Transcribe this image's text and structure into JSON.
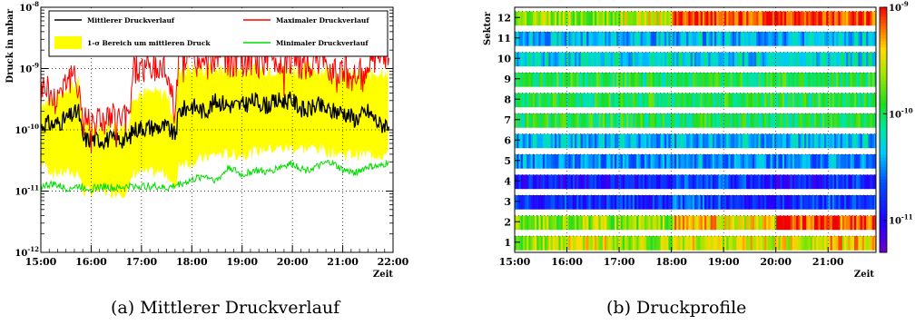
{
  "captions": {
    "a": "(a) Mittlerer Druckverlauf",
    "b": "(b) Druckprofile"
  },
  "chart_data": [
    {
      "type": "line",
      "ylabel": "Druck in mbar",
      "xlabel": "Zeit",
      "yscale": "log",
      "ylim": [
        1e-12,
        1e-08
      ],
      "xlim": [
        "15:00",
        "22:00"
      ],
      "x_ticks": [
        "15:00",
        "16:00",
        "17:00",
        "18:00",
        "19:00",
        "20:00",
        "21:00",
        "22:00"
      ],
      "y_ticks": [
        "10^-12",
        "10^-11",
        "10^-10",
        "10^-9",
        "10^-8"
      ],
      "grid": true,
      "legend": [
        {
          "label": "Mittlerer Druckverlauf",
          "color": "#000000"
        },
        {
          "label": "Maximaler Druckverlauf",
          "color": "#ff0000"
        },
        {
          "label": "1-σ Bereich um mittleren Druck",
          "color": "#ffff00"
        },
        {
          "label": "Minimaler Druckverlauf",
          "color": "#00dd00"
        }
      ],
      "series": [
        {
          "name": "Mittlerer Druckverlauf",
          "color": "#000000",
          "x": [
            "15:00",
            "15:05",
            "15:15",
            "15:30",
            "15:45",
            "15:50",
            "16:00",
            "16:30",
            "16:45",
            "16:50",
            "17:00",
            "17:30",
            "17:40",
            "17:45",
            "18:00",
            "18:15",
            "18:30",
            "18:45",
            "19:00",
            "19:15",
            "19:30",
            "19:45",
            "20:00",
            "20:15",
            "20:30",
            "20:45",
            "21:00",
            "21:15",
            "21:30",
            "21:45",
            "21:55"
          ],
          "y": [
            1.1e-10,
            1.3e-10,
            1.2e-10,
            1.5e-10,
            2e-10,
            7e-11,
            7e-11,
            7e-11,
            7e-11,
            1e-10,
            1.1e-10,
            1.1e-10,
            8e-11,
            2e-10,
            2.5e-10,
            2e-10,
            3e-10,
            2.5e-10,
            2.5e-10,
            3e-10,
            2.5e-10,
            3e-10,
            3e-10,
            2e-10,
            2.5e-10,
            2e-10,
            2e-10,
            1.5e-10,
            2e-10,
            1.2e-10,
            1.3e-10
          ]
        },
        {
          "name": "Maximaler Druckverlauf",
          "color": "#ff0000",
          "x": [
            "15:00",
            "15:05",
            "15:15",
            "15:30",
            "15:45",
            "15:50",
            "16:00",
            "16:30",
            "16:45",
            "16:50",
            "17:00",
            "17:30",
            "17:40",
            "17:45",
            "18:00",
            "18:15",
            "18:30",
            "18:45",
            "19:00",
            "19:15",
            "19:30",
            "19:45",
            "20:00",
            "20:15",
            "20:30",
            "20:45",
            "21:00",
            "21:15",
            "21:30",
            "21:45",
            "21:55"
          ],
          "y": [
            4e-10,
            6e-10,
            3e-10,
            7e-10,
            6e-10,
            1.5e-10,
            1.5e-10,
            1.5e-10,
            1.5e-10,
            1e-09,
            1e-09,
            1e-09,
            2e-10,
            2e-09,
            1.5e-09,
            1e-09,
            2e-09,
            1.2e-09,
            1.5e-09,
            1.2e-09,
            1.5e-09,
            1.2e-09,
            1.5e-09,
            1e-09,
            1.5e-09,
            1e-09,
            1e-09,
            7e-10,
            1e-09,
            1.5e-09,
            2e-09
          ]
        },
        {
          "name": "Minimaler Druckverlauf",
          "color": "#00dd00",
          "x": [
            "15:00",
            "15:15",
            "15:30",
            "15:45",
            "16:00",
            "16:15",
            "16:30",
            "16:45",
            "17:00",
            "17:15",
            "17:30",
            "17:45",
            "18:00",
            "18:15",
            "18:30",
            "18:45",
            "19:00",
            "19:15",
            "19:30",
            "19:45",
            "20:00",
            "20:15",
            "20:30",
            "20:45",
            "21:00",
            "21:15",
            "21:30",
            "21:45",
            "21:55"
          ],
          "y": [
            1.2e-11,
            1.3e-11,
            1.1e-11,
            1.2e-11,
            1.1e-11,
            1.2e-11,
            1.1e-11,
            1.2e-11,
            1.2e-11,
            1.2e-11,
            1.1e-11,
            1.3e-11,
            1.5e-11,
            1.8e-11,
            1.5e-11,
            2.5e-11,
            1.8e-11,
            2.2e-11,
            2e-11,
            2.5e-11,
            2.8e-11,
            2.2e-11,
            2.5e-11,
            3e-11,
            2.2e-11,
            2e-11,
            2.5e-11,
            2.5e-11,
            3e-11
          ]
        }
      ],
      "band": {
        "name": "1-σ Bereich um mittleren Druck",
        "color": "#ffff00",
        "x": [
          "15:00",
          "15:15",
          "15:30",
          "15:45",
          "15:50",
          "16:00",
          "16:30",
          "16:45",
          "16:50",
          "17:00",
          "17:30",
          "17:40",
          "17:45",
          "18:00",
          "18:30",
          "19:00",
          "19:30",
          "20:00",
          "20:30",
          "21:00",
          "21:30",
          "21:55"
        ],
        "upper": [
          3e-10,
          3e-10,
          5e-10,
          6e-10,
          1.2e-10,
          1.2e-10,
          1.2e-10,
          1.2e-10,
          4e-10,
          4e-10,
          4e-10,
          1.5e-10,
          1e-09,
          1e-09,
          1e-09,
          1e-09,
          1e-09,
          1e-09,
          1e-09,
          8e-10,
          8e-10,
          1e-09
        ],
        "lower": [
          3e-11,
          2e-11,
          2e-11,
          2e-11,
          1e-11,
          1e-11,
          1e-11,
          1e-11,
          2e-11,
          2e-11,
          2e-11,
          1e-11,
          3e-11,
          3e-11,
          4e-11,
          4e-11,
          5e-11,
          5e-11,
          5e-11,
          4e-11,
          4e-11,
          4e-11
        ]
      }
    },
    {
      "type": "heatmap",
      "ylabel": "Sektor",
      "xlabel": "Zeit",
      "x_ticks": [
        "15:00",
        "16:00",
        "17:00",
        "18:00",
        "19:00",
        "20:00",
        "21:00"
      ],
      "y_ticks": [
        "1",
        "2",
        "3",
        "4",
        "5",
        "6",
        "7",
        "8",
        "9",
        "10",
        "11",
        "12"
      ],
      "colorbar": {
        "scale": "log",
        "range": [
          5e-12,
          1e-09
        ],
        "ticks": [
          "10^-11",
          "10^-10",
          "10^-9"
        ]
      },
      "time_bins": [
        "15:00",
        "16:00",
        "17:00",
        "18:00",
        "19:00",
        "20:00",
        "21:00"
      ],
      "sectors": [
        {
          "sector": 1,
          "values": [
            2e-10,
            3e-10,
            2e-10,
            3e-10,
            3e-10,
            3e-10,
            4e-10
          ]
        },
        {
          "sector": 2,
          "values": [
            2e-10,
            2e-10,
            2e-10,
            4e-10,
            3e-10,
            8e-10,
            7e-10
          ]
        },
        {
          "sector": 3,
          "values": [
            1.5e-11,
            1.5e-11,
            1.5e-11,
            2e-11,
            1.5e-11,
            1.5e-11,
            2e-11
          ]
        },
        {
          "sector": 4,
          "values": [
            1.2e-11,
            1.2e-11,
            1.2e-11,
            2e-11,
            1.5e-11,
            1.2e-11,
            1.5e-11
          ]
        },
        {
          "sector": 5,
          "values": [
            3e-11,
            3e-11,
            3e-11,
            3e-11,
            3e-11,
            3e-11,
            3e-11
          ]
        },
        {
          "sector": 6,
          "values": [
            4e-11,
            4e-11,
            4e-11,
            4e-11,
            4e-11,
            4e-11,
            4e-11
          ]
        },
        {
          "sector": 7,
          "values": [
            1e-10,
            1e-10,
            1e-10,
            1e-10,
            1e-10,
            1e-10,
            1e-10
          ]
        },
        {
          "sector": 8,
          "values": [
            1e-10,
            1e-10,
            1e-10,
            1e-10,
            1e-10,
            1e-10,
            1e-10
          ]
        },
        {
          "sector": 9,
          "values": [
            1e-10,
            1e-10,
            1e-10,
            1e-10,
            1e-10,
            1e-10,
            1e-10
          ]
        },
        {
          "sector": 10,
          "values": [
            5e-11,
            5e-11,
            5e-11,
            5e-11,
            5e-11,
            5e-11,
            5e-11
          ]
        },
        {
          "sector": 11,
          "values": [
            4e-11,
            4e-11,
            4e-11,
            4e-11,
            4e-11,
            4e-11,
            4e-11
          ]
        },
        {
          "sector": 12,
          "values": [
            2e-10,
            2e-10,
            3e-10,
            8e-10,
            9e-10,
            9e-10,
            8e-10
          ]
        }
      ]
    }
  ]
}
